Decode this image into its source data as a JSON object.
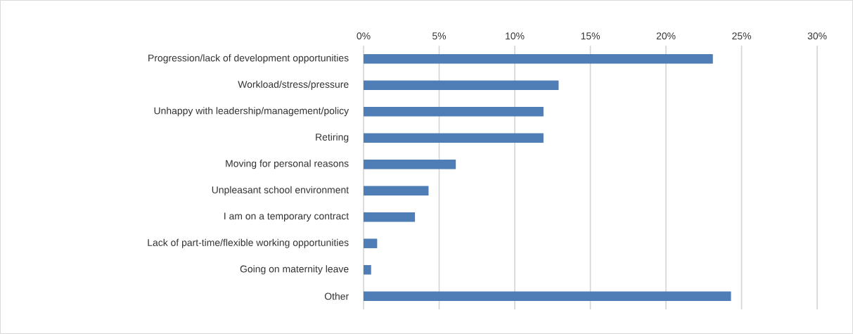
{
  "chart_data": {
    "type": "bar",
    "orientation": "horizontal",
    "categories": [
      "Progression/lack of development opportunities",
      "Workload/stress/pressure",
      "Unhappy with leadership/management/policy",
      "Retiring",
      "Moving for personal reasons",
      "Unpleasant school environment",
      "I am on a temporary contract",
      "Lack of part-time/flexible working opportunities",
      "Going on maternity leave",
      "Other"
    ],
    "values": [
      23.1,
      12.9,
      11.9,
      11.9,
      6.1,
      4.3,
      3.4,
      0.9,
      0.5,
      24.3
    ],
    "color": "#4f7db5",
    "xlim": [
      0,
      30
    ],
    "xticks": [
      {
        "value": 0,
        "label": "0%"
      },
      {
        "value": 5,
        "label": "5%"
      },
      {
        "value": 10,
        "label": "10%"
      },
      {
        "value": 15,
        "label": "15%"
      },
      {
        "value": 20,
        "label": "20%"
      },
      {
        "value": 25,
        "label": "25%"
      },
      {
        "value": 30,
        "label": "30%"
      }
    ],
    "grid": "x"
  }
}
